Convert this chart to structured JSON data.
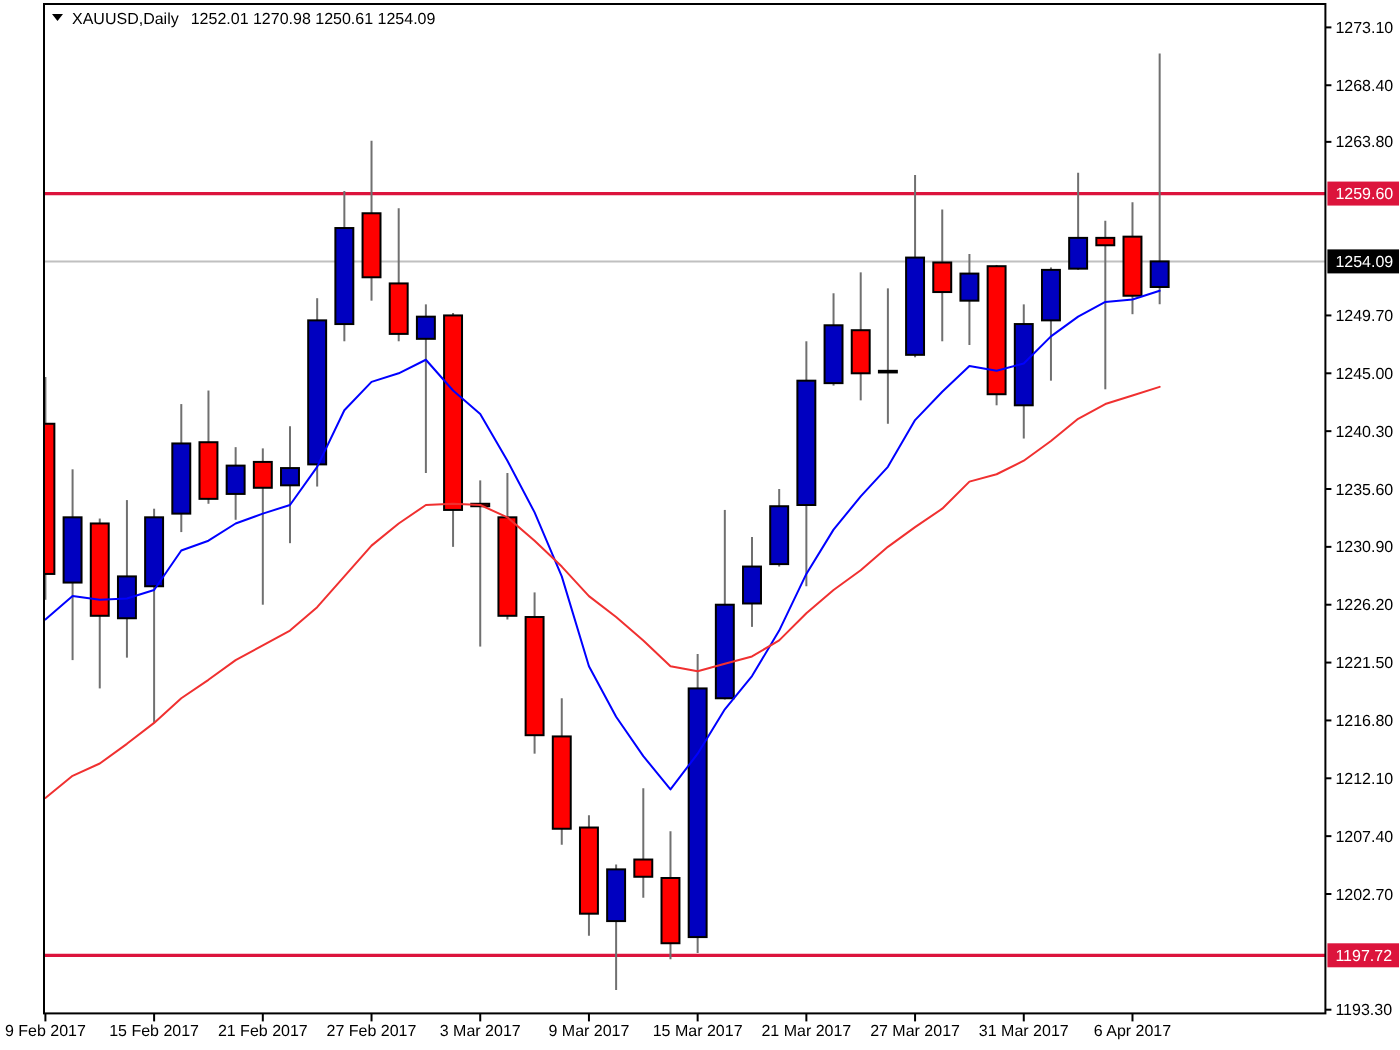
{
  "chart_data": {
    "type": "candlestick",
    "title": "XAUUSD,Daily",
    "subtitle": "1252.01 1270.98 1250.61 1254.09",
    "categories": [
      "9 Feb 2017",
      null,
      null,
      null,
      "15 Feb 2017",
      null,
      null,
      null,
      "21 Feb 2017",
      null,
      null,
      null,
      "27 Feb 2017",
      null,
      null,
      null,
      "3 Mar 2017",
      null,
      null,
      null,
      "9 Mar 2017",
      null,
      null,
      null,
      "15 Mar 2017",
      null,
      null,
      null,
      "21 Mar 2017",
      null,
      null,
      null,
      "27 Mar 2017",
      null,
      null,
      null,
      "31 Mar 2017",
      null,
      null,
      null,
      "6 Apr 2017",
      null
    ],
    "ohlc": [
      [
        1240.9,
        1244.7,
        1226.6,
        1228.7
      ],
      [
        1228.0,
        1237.2,
        1221.7,
        1233.3
      ],
      [
        1232.8,
        1233.2,
        1219.4,
        1225.3
      ],
      [
        1225.1,
        1234.7,
        1221.9,
        1228.5
      ],
      [
        1227.7,
        1234.0,
        1216.6,
        1233.3
      ],
      [
        1233.6,
        1242.5,
        1232.1,
        1239.3
      ],
      [
        1239.4,
        1243.6,
        1234.4,
        1234.8
      ],
      [
        1235.2,
        1239.0,
        1233.1,
        1237.5
      ],
      [
        1237.8,
        1238.9,
        1226.2,
        1235.7
      ],
      [
        1235.9,
        1240.7,
        1231.2,
        1237.3
      ],
      [
        1237.6,
        1251.1,
        1235.8,
        1249.3
      ],
      [
        1249.0,
        1259.8,
        1247.6,
        1256.8
      ],
      [
        1258.0,
        1263.9,
        1250.9,
        1252.8
      ],
      [
        1252.3,
        1258.4,
        1247.6,
        1248.2
      ],
      [
        1247.8,
        1250.6,
        1236.9,
        1249.6
      ],
      [
        1249.7,
        1249.9,
        1230.9,
        1233.9
      ],
      [
        1234.4,
        1236.3,
        1222.8,
        1234.2
      ],
      [
        1233.3,
        1236.9,
        1225.0,
        1225.3
      ],
      [
        1225.2,
        1227.2,
        1214.1,
        1215.6
      ],
      [
        1215.5,
        1218.6,
        1206.7,
        1208.0
      ],
      [
        1208.1,
        1209.1,
        1199.3,
        1201.1
      ],
      [
        1200.5,
        1205.1,
        1194.9,
        1204.7
      ],
      [
        1205.5,
        1211.3,
        1202.4,
        1204.1
      ],
      [
        1204.0,
        1207.8,
        1197.4,
        1198.7
      ],
      [
        1199.2,
        1222.2,
        1197.9,
        1219.4
      ],
      [
        1218.6,
        1233.9,
        1218.5,
        1226.2
      ],
      [
        1226.3,
        1231.7,
        1224.4,
        1229.3
      ],
      [
        1229.5,
        1235.6,
        1229.3,
        1234.2
      ],
      [
        1234.3,
        1247.6,
        1227.7,
        1244.4
      ],
      [
        1244.2,
        1251.5,
        1244.0,
        1248.9
      ],
      [
        1248.5,
        1253.2,
        1242.8,
        1245.0
      ],
      [
        1245.2,
        1251.9,
        1240.9,
        1245.2
      ],
      [
        1246.5,
        1261.1,
        1246.3,
        1254.4
      ],
      [
        1254.0,
        1258.3,
        1247.6,
        1251.6
      ],
      [
        1250.9,
        1254.7,
        1247.3,
        1253.1
      ],
      [
        1253.7,
        1253.8,
        1242.4,
        1243.3
      ],
      [
        1242.4,
        1250.6,
        1239.7,
        1249.0
      ],
      [
        1249.3,
        1253.6,
        1244.4,
        1253.4
      ],
      [
        1253.5,
        1261.3,
        1253.4,
        1256.0
      ],
      [
        1256.0,
        1257.4,
        1243.7,
        1255.4
      ],
      [
        1256.1,
        1258.9,
        1249.8,
        1251.3
      ],
      [
        1252.01,
        1270.98,
        1250.61,
        1254.09
      ]
    ],
    "colors": [
      "#ff0000",
      "#0000c0",
      "#ff0000",
      "#0000c0",
      "#0000c0",
      "#0000c0",
      "#ff0000",
      "#0000c0",
      "#ff0000",
      "#0000c0",
      "#0000c0",
      "#0000c0",
      "#ff0000",
      "#ff0000",
      "#0000c0",
      "#ff0000",
      "#ff0000",
      "#ff0000",
      "#ff0000",
      "#ff0000",
      "#ff0000",
      "#0000c0",
      "#ff0000",
      "#ff0000",
      "#0000c0",
      "#0000c0",
      "#0000c0",
      "#0000c0",
      "#0000c0",
      "#0000c0",
      "#ff0000",
      "#000000",
      "#0000c0",
      "#ff0000",
      "#0000c0",
      "#ff0000",
      "#0000c0",
      "#0000c0",
      "#0000c0",
      "#ff0000",
      "#ff0000",
      "#0000c0"
    ],
    "series": [
      {
        "type": "line",
        "color": "#0000ff",
        "values": [
          1225.0,
          1226.9,
          1226.6,
          1226.7,
          1227.4,
          1230.6,
          1231.4,
          1232.8,
          1233.6,
          1234.3,
          1237.4,
          1242.0,
          1244.3,
          1245.0,
          1246.1,
          1243.6,
          1241.7,
          1237.9,
          1233.7,
          1228.5,
          1221.2,
          1217.1,
          1213.9,
          1211.2,
          1214.1,
          1217.7,
          1220.4,
          1224.1,
          1228.7,
          1232.3,
          1235.0,
          1237.4,
          1241.2,
          1243.5,
          1245.6,
          1245.2,
          1245.8,
          1248.0,
          1249.6,
          1250.8,
          1251.0,
          1251.7
        ]
      },
      {
        "type": "line",
        "color": "#f03030",
        "values": [
          1210.5,
          1212.3,
          1213.3,
          1214.9,
          1216.6,
          1218.6,
          1220.1,
          1221.7,
          1222.9,
          1224.1,
          1226.0,
          1228.5,
          1231.0,
          1232.8,
          1234.3,
          1234.4,
          1234.3,
          1233.3,
          1231.4,
          1229.3,
          1226.9,
          1225.2,
          1223.3,
          1221.2,
          1220.8,
          1221.4,
          1222.0,
          1223.3,
          1225.5,
          1227.4,
          1229.0,
          1230.9,
          1232.5,
          1234.0,
          1236.2,
          1236.8,
          1237.9,
          1239.5,
          1241.3,
          1242.5,
          1243.2,
          1243.9
        ]
      }
    ],
    "ylim": [
      1193.0,
      1275.0
    ],
    "yticks": [
      {
        "value": 1193.3,
        "label": "1193.30"
      },
      {
        "value": 1202.7,
        "label": "1202.70"
      },
      {
        "value": 1207.4,
        "label": "1207.40"
      },
      {
        "value": 1212.1,
        "label": "1212.10"
      },
      {
        "value": 1216.8,
        "label": "1216.80"
      },
      {
        "value": 1221.5,
        "label": "1221.50"
      },
      {
        "value": 1226.2,
        "label": "1226.20"
      },
      {
        "value": 1230.9,
        "label": "1230.90"
      },
      {
        "value": 1235.6,
        "label": "1235.60"
      },
      {
        "value": 1240.3,
        "label": "1240.30"
      },
      {
        "value": 1245.0,
        "label": "1245.00"
      },
      {
        "value": 1249.7,
        "label": "1249.70"
      },
      {
        "value": 1263.8,
        "label": "1263.80"
      },
      {
        "value": 1268.4,
        "label": "1268.40"
      },
      {
        "value": 1273.1,
        "label": "1273.10"
      }
    ],
    "ref_lines": [
      {
        "axis": "y",
        "value": 1259.6,
        "label": "1259.60",
        "color": "#dc143c"
      },
      {
        "axis": "y",
        "value": 1254.09,
        "label": "1254.09",
        "color": "#c0c0c0"
      },
      {
        "axis": "y",
        "value": 1197.72,
        "label": "1197.72",
        "color": "#dc143c"
      }
    ]
  }
}
